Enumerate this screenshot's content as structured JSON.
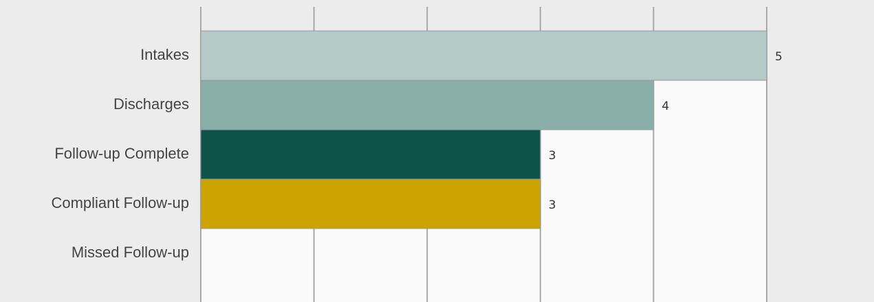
{
  "chart_data": {
    "type": "hbar",
    "categories": [
      "Intakes",
      "Discharges",
      "Follow-up Complete",
      "Compliant Follow-up",
      "Missed Follow-up"
    ],
    "values": [
      5,
      4,
      3,
      3,
      0
    ],
    "value_labels": [
      "5",
      "4",
      "3",
      "3",
      null
    ],
    "colors": [
      "#b4cac6",
      "#8aaea8",
      "#0d5349",
      "#cca300",
      "#cccccc"
    ],
    "xlim": [
      0,
      5
    ],
    "xticks": [
      0,
      1,
      2,
      3,
      4,
      5
    ],
    "grid": true
  }
}
